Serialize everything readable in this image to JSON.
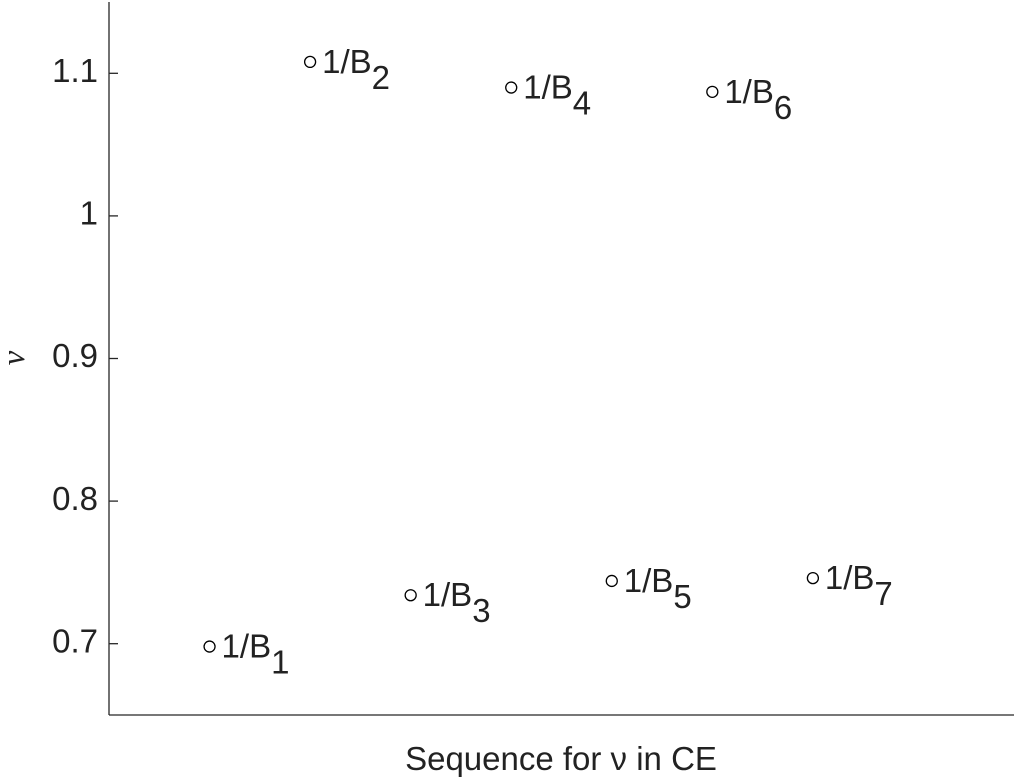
{
  "chart_data": {
    "type": "scatter",
    "xlabel": "Sequence for ν in CE",
    "ylabel": "ν",
    "x": [
      1,
      2,
      3,
      4,
      5,
      6,
      7
    ],
    "values": [
      0.698,
      1.108,
      0.734,
      1.09,
      0.744,
      1.087,
      0.746
    ],
    "point_labels": [
      {
        "text": "1/B",
        "subscript": "1"
      },
      {
        "text": "1/B",
        "subscript": "2"
      },
      {
        "text": "1/B",
        "subscript": "3"
      },
      {
        "text": "1/B",
        "subscript": "4"
      },
      {
        "text": "1/B",
        "subscript": "5"
      },
      {
        "text": "1/B",
        "subscript": "6"
      },
      {
        "text": "1/B",
        "subscript": "7"
      }
    ],
    "color": "#000000",
    "xlim": [
      0,
      9
    ],
    "ylim": [
      0.65,
      1.15
    ],
    "yticks": [
      0.7,
      0.8,
      0.9,
      1,
      1.1
    ]
  }
}
